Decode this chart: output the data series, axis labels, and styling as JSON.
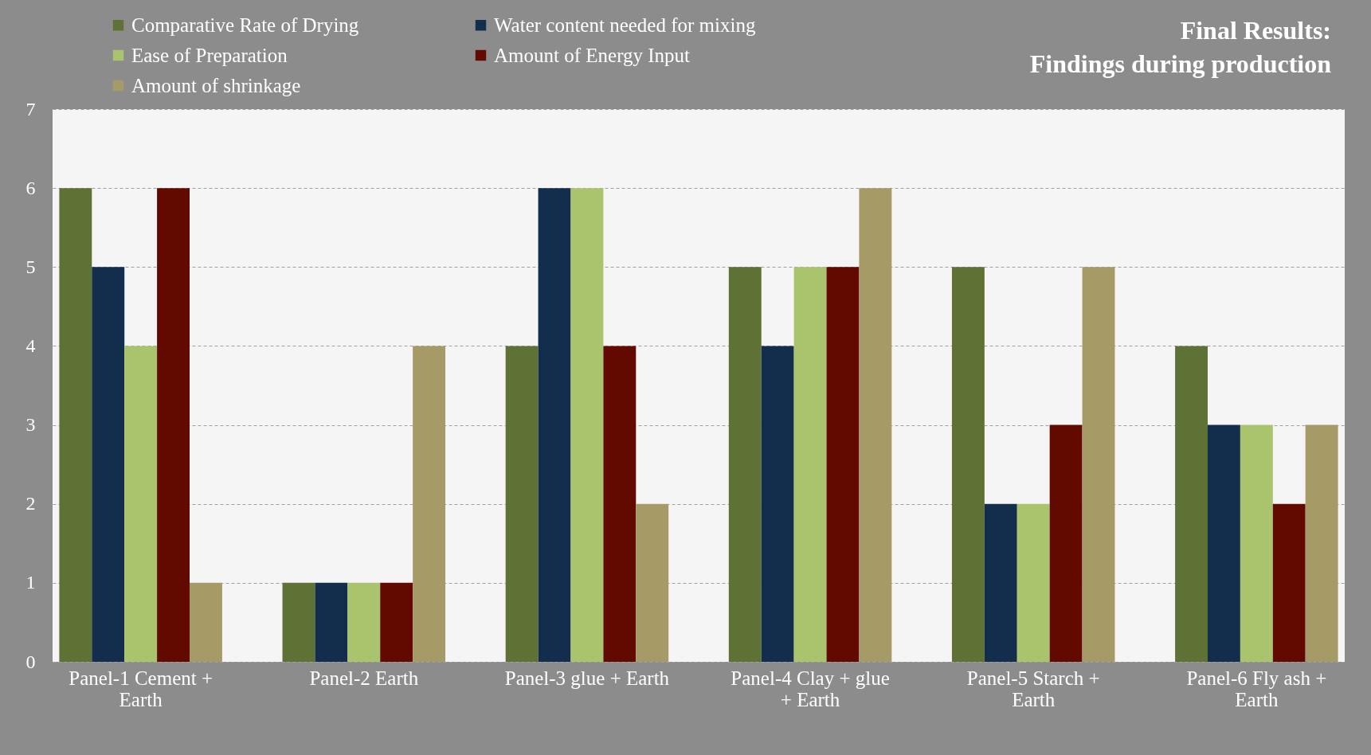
{
  "chart_data": {
    "type": "bar",
    "title": "Final Results: Findings during production",
    "categories": [
      "Panel-1 Cement + Earth",
      "Panel-2  Earth",
      "Panel-3 glue + Earth",
      "Panel-4 Clay + glue + Earth",
      "Panel-5 Starch + Earth",
      "Panel-6 Fly ash + Earth"
    ],
    "series": [
      {
        "name": "Comparative Rate of Drying",
        "color": "#5e7236",
        "values": [
          6,
          1,
          4,
          5,
          5,
          4
        ]
      },
      {
        "name": "Water content needed for mixing",
        "color": "#132d4c",
        "values": [
          5,
          1,
          6,
          4,
          2,
          3
        ]
      },
      {
        "name": "Ease of Preparation",
        "color": "#a9c46c",
        "values": [
          4,
          1,
          6,
          5,
          2,
          3
        ]
      },
      {
        "name": "Amount of Energy Input",
        "color": "#630a00",
        "values": [
          6,
          1,
          4,
          5,
          3,
          2
        ]
      },
      {
        "name": "Amount of shrinkage",
        "color": "#a69a66",
        "values": [
          1,
          4,
          2,
          6,
          5,
          3
        ]
      }
    ],
    "ylim": [
      0,
      7
    ],
    "yticks": [
      0,
      1,
      2,
      3,
      4,
      5,
      6,
      7
    ],
    "grid": "y",
    "legend": "top left"
  }
}
